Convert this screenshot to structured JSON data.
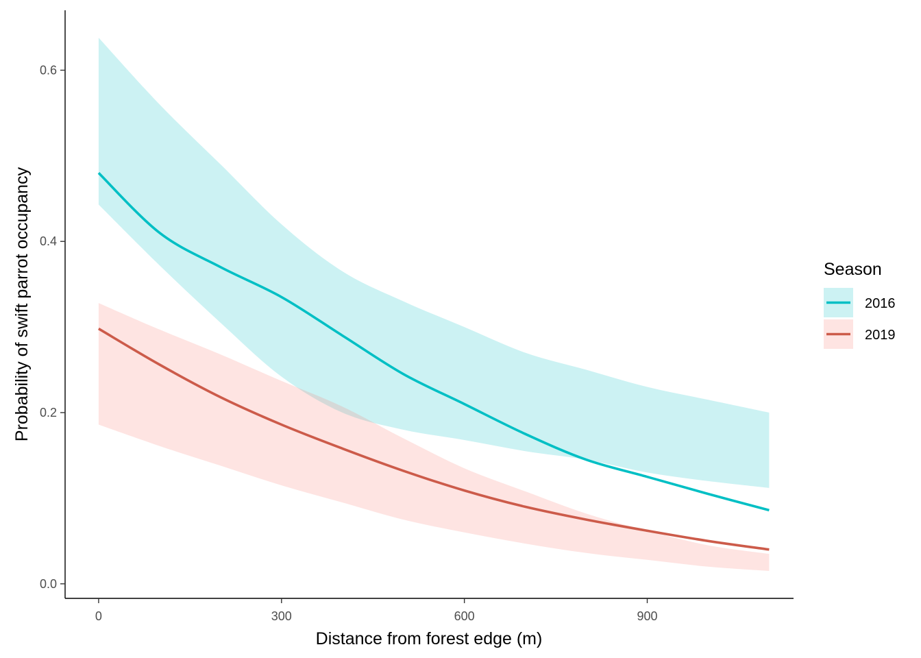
{
  "chart_data": {
    "type": "line",
    "xlabel": "Distance from forest edge (m)",
    "ylabel": "Probability of swift parrot occupancy",
    "xlim": [
      -55,
      1140
    ],
    "ylim": [
      -0.017,
      0.67
    ],
    "x_ticks": [
      0,
      300,
      600,
      900
    ],
    "y_ticks": [
      0.0,
      0.2,
      0.4,
      0.6
    ],
    "x_tick_labels": [
      "0",
      "300",
      "600",
      "900"
    ],
    "y_tick_labels": [
      "0.0",
      "0.2",
      "0.4",
      "0.6"
    ],
    "grid": false,
    "legend": {
      "title": "Season",
      "position": "right"
    },
    "series": [
      {
        "name": "2016",
        "color": "#00BFC4",
        "ribbon_color": "#00BFC4",
        "x": [
          0,
          100,
          200,
          300,
          400,
          500,
          600,
          700,
          800,
          900,
          1000,
          1100
        ],
        "y": [
          0.48,
          0.41,
          0.37,
          0.335,
          0.29,
          0.245,
          0.21,
          0.175,
          0.145,
          0.125,
          0.105,
          0.086
        ],
        "lower": [
          0.443,
          0.372,
          0.305,
          0.242,
          0.2,
          0.18,
          0.168,
          0.155,
          0.145,
          0.13,
          0.12,
          0.112
        ],
        "upper": [
          0.638,
          0.56,
          0.49,
          0.42,
          0.365,
          0.33,
          0.3,
          0.27,
          0.25,
          0.23,
          0.215,
          0.2
        ]
      },
      {
        "name": "2019",
        "color": "#CC5B4A",
        "ribbon_color": "#F8766D",
        "x": [
          0,
          100,
          200,
          300,
          400,
          500,
          600,
          700,
          800,
          900,
          1000,
          1100
        ],
        "y": [
          0.298,
          0.256,
          0.218,
          0.186,
          0.158,
          0.132,
          0.109,
          0.09,
          0.075,
          0.062,
          0.05,
          0.04
        ],
        "lower": [
          0.186,
          0.161,
          0.138,
          0.115,
          0.095,
          0.075,
          0.06,
          0.047,
          0.036,
          0.028,
          0.02,
          0.015
        ],
        "upper": [
          0.328,
          0.297,
          0.268,
          0.237,
          0.207,
          0.17,
          0.135,
          0.108,
          0.082,
          0.062,
          0.045,
          0.035
        ]
      }
    ]
  }
}
